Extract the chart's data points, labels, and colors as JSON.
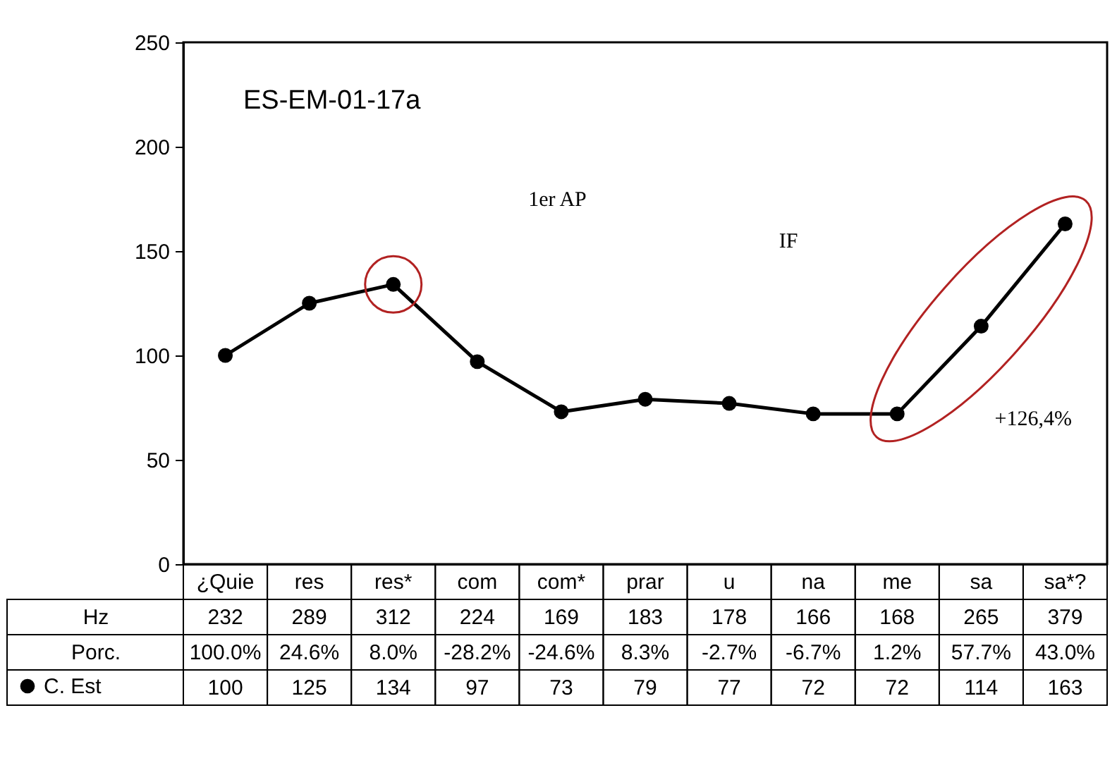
{
  "chart_data": {
    "type": "line",
    "title": "ES-EM-01-17a",
    "categories": [
      "¿Quie",
      "res",
      "res*",
      "com",
      "com*",
      "prar",
      "u",
      "na",
      "me",
      "sa",
      "sa*?"
    ],
    "series": [
      {
        "name": "C. Est",
        "color": "#000000",
        "values": [
          100,
          125,
          134,
          97,
          73,
          79,
          77,
          72,
          72,
          114,
          163
        ]
      }
    ],
    "ylim": [
      0,
      250
    ],
    "yticks": [
      0,
      50,
      100,
      150,
      200,
      250
    ],
    "grid": false,
    "marker": "circle",
    "legend": "bottom",
    "data_labels": true,
    "annotations": [
      "Hz",
      "232",
      "289",
      "312",
      "224",
      "169",
      "183",
      "178",
      "166",
      "168",
      "265",
      "379",
      "Porc.",
      "100.0%",
      "24.6%",
      "8.0%",
      "-28.2%",
      "-24.6%",
      "8.3%",
      "-2.7%",
      "-6.7%",
      "1.2%",
      "57.7%",
      "43.0%",
      "1er AP",
      "IF",
      "+126,4%"
    ]
  }
}
